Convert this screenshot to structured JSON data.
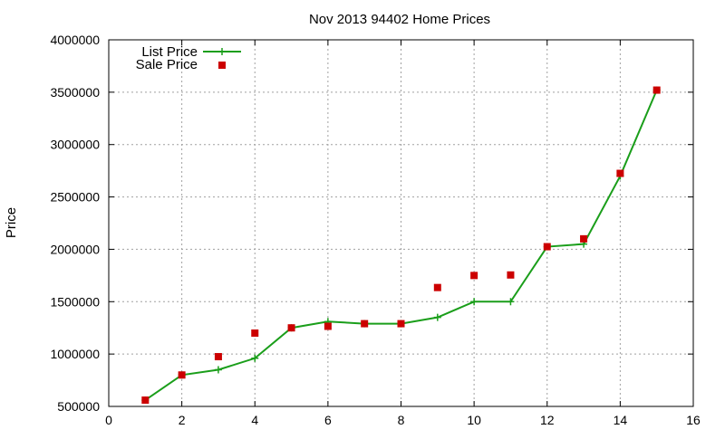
{
  "chart_data": {
    "type": "line",
    "title": "Nov 2013 94402 Home Prices",
    "xlabel": "",
    "ylabel": "Price",
    "xlim": [
      0,
      16
    ],
    "ylim": [
      500000,
      4000000
    ],
    "x_ticks": [
      0,
      2,
      4,
      6,
      8,
      10,
      12,
      14,
      16
    ],
    "y_ticks": [
      500000,
      1000000,
      1500000,
      2000000,
      2500000,
      3000000,
      3500000,
      4000000
    ],
    "grid": true,
    "legend_position": "top-left",
    "series": [
      {
        "name": "List Price",
        "style": "line-with-plus-markers",
        "color": "#1a9e1a",
        "x": [
          1,
          2,
          3,
          4,
          5,
          6,
          7,
          8,
          9,
          10,
          11,
          12,
          13,
          14,
          15
        ],
        "values": [
          560000,
          800000,
          850000,
          960000,
          1250000,
          1310000,
          1290000,
          1290000,
          1350000,
          1500000,
          1500000,
          2025000,
          2050000,
          2700000,
          3520000
        ]
      },
      {
        "name": "Sale Price",
        "style": "square-markers",
        "color": "#cc0000",
        "x": [
          1,
          2,
          3,
          4,
          5,
          6,
          7,
          8,
          9,
          10,
          11,
          12,
          13,
          14,
          15
        ],
        "values": [
          560000,
          800000,
          975000,
          1200000,
          1250000,
          1265000,
          1290000,
          1290000,
          1635000,
          1750000,
          1755000,
          2025000,
          2100000,
          2725000,
          3520000
        ]
      }
    ]
  }
}
